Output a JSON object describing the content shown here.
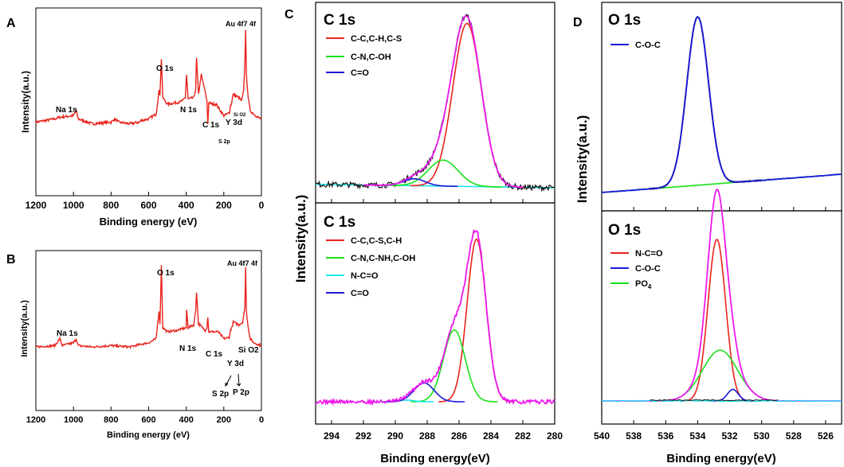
{
  "colors": {
    "red": "#e8231c",
    "green": "#19e01a",
    "blue": "#1a1ad8",
    "cyan": "#19e6ef",
    "magenta": "#ee18ee",
    "black": "#111111"
  },
  "panels": {
    "A": {
      "label": "A",
      "ylabel": "Intensity(a.u.)",
      "xlabel": "Binding energy (eV)",
      "xticks": [
        "1200",
        "1000",
        "800",
        "600",
        "400",
        "200",
        "0"
      ],
      "annotations": [
        "Na 1s",
        "O 1s",
        "N 1s",
        "C 1s",
        "Y 3d",
        "Si O2",
        "S 2p",
        "Au 4f7 4f"
      ]
    },
    "B": {
      "label": "B",
      "ylabel": "Intensity(a.u.)",
      "xlabel": "Binding energy (eV)",
      "xticks": [
        "1200",
        "1000",
        "800",
        "600",
        "400",
        "200",
        "0"
      ],
      "annotations": [
        "Na 1s",
        "O 1s",
        "N 1s",
        "C 1s",
        "Y 3d",
        "Si O2",
        "S 2p",
        "P 2p",
        "Au 4f7 4f"
      ]
    },
    "C": {
      "label": "C",
      "ylabel": "Intensity(a.u.)",
      "xlabel": "Binding energy(eV)",
      "xticks": [
        "294",
        "292",
        "290",
        "288",
        "286",
        "284",
        "282",
        "280"
      ],
      "top": {
        "title": "C 1s",
        "legend": [
          "C-C,C-H,C-S",
          "C-N,C-OH",
          "C=O"
        ]
      },
      "bottom": {
        "title": "C 1s",
        "legend": [
          "C-C,C-S,C-H",
          "C-N,C-NH,C-OH",
          "N-C=O",
          "C=O"
        ]
      }
    },
    "D": {
      "label": "D",
      "ylabel": "Intensity(a.u.)",
      "xlabel": "Binding energy(eV)",
      "xticks": [
        "540",
        "538",
        "536",
        "534",
        "532",
        "530",
        "528",
        "526"
      ],
      "top": {
        "title": "O 1s",
        "legend": [
          "C-O-C"
        ]
      },
      "bottom": {
        "title": "O 1s",
        "legend": [
          "N-C=O",
          "C-O-C",
          "PO4"
        ],
        "legend_subscript": "4"
      }
    }
  },
  "chart_data": [
    {
      "type": "line",
      "title": "A",
      "xlabel": "Binding energy (eV)",
      "ylabel": "Intensity(a.u.)",
      "xlim": [
        1200,
        0
      ],
      "x_reversed": true,
      "series": [
        {
          "name": "Survey spectrum",
          "x": [
            1200,
            1100,
            1072,
            1000,
            985,
            975,
            900,
            800,
            780,
            760,
            700,
            650,
            640,
            600,
            560,
            545,
            540,
            532,
            525,
            500,
            450,
            420,
            405,
            398,
            390,
            360,
            350,
            345,
            335,
            320,
            300,
            290,
            285,
            280,
            260,
            240,
            230,
            200,
            180,
            170,
            165,
            160,
            157,
            150,
            120,
            105,
            100,
            95,
            88,
            84,
            80,
            70,
            60,
            40,
            20,
            0
          ],
          "y": [
            45,
            47,
            48,
            49,
            52,
            47,
            44,
            45,
            47,
            45,
            44,
            45,
            46,
            47,
            50,
            64,
            62,
            84,
            60,
            56,
            57,
            58,
            60,
            74,
            59,
            60,
            65,
            84,
            62,
            74,
            64,
            58,
            44,
            57,
            56,
            56,
            54,
            49,
            50,
            51,
            55,
            56,
            58,
            62,
            60,
            58,
            61,
            64,
            80,
            102,
            74,
            60,
            52,
            50,
            48,
            47
          ]
        }
      ]
    },
    {
      "type": "line",
      "title": "B",
      "xlabel": "Binding energy (eV)",
      "ylabel": "Intensity(a.u.)",
      "xlim": [
        1200,
        0
      ],
      "x_reversed": true,
      "series": [
        {
          "name": "Survey spectrum",
          "x": [
            1200,
            1100,
            1072,
            1060,
            1000,
            985,
            975,
            900,
            800,
            700,
            640,
            600,
            560,
            545,
            540,
            532,
            525,
            500,
            450,
            400,
            398,
            390,
            360,
            350,
            345,
            335,
            300,
            290,
            285,
            280,
            230,
            200,
            170,
            165,
            157,
            150,
            120,
            100,
            88,
            84,
            80,
            70,
            60,
            40,
            20,
            0
          ],
          "y": [
            46,
            47,
            52,
            47,
            49,
            52,
            47,
            46,
            47,
            46,
            48,
            49,
            52,
            72,
            62,
            105,
            60,
            57,
            58,
            60,
            73,
            60,
            62,
            72,
            86,
            63,
            58,
            60,
            68,
            57,
            57,
            52,
            53,
            58,
            60,
            64,
            62,
            64,
            74,
            104,
            72,
            60,
            52,
            49,
            48,
            47
          ]
        }
      ]
    },
    {
      "type": "line",
      "title": "C 1s (top)",
      "xlabel": "Binding energy(eV)",
      "ylabel": "Intensity(a.u.)",
      "xlim": [
        295,
        280
      ],
      "x_reversed": true,
      "series": [
        {
          "name": "C-C,C-H,C-S",
          "peaks": [
            {
              "center": 285.5,
              "height": 94,
              "fwhm": 2.1
            }
          ]
        },
        {
          "name": "C-N,C-OH",
          "peaks": [
            {
              "center": 287.0,
              "height": 15,
              "fwhm": 2.2
            }
          ]
        },
        {
          "name": "C=O",
          "peaks": [
            {
              "center": 288.8,
              "height": 4,
              "fwhm": 1.6
            }
          ]
        },
        {
          "name": "Background",
          "x": [
            295,
            280
          ],
          "y": [
            2,
            0
          ]
        },
        {
          "name": "Envelope",
          "description": "sum of fitted peaks"
        },
        {
          "name": "Raw data",
          "description": "noisy experimental curve"
        }
      ]
    },
    {
      "type": "line",
      "title": "C 1s (bottom)",
      "xlabel": "Binding energy(eV)",
      "ylabel": "Intensity(a.u.)",
      "xlim": [
        295,
        280
      ],
      "x_reversed": true,
      "series": [
        {
          "name": "C-C,C-S,C-H",
          "peaks": [
            {
              "center": 284.9,
              "height": 95,
              "fwhm": 1.4
            }
          ]
        },
        {
          "name": "C-N,C-NH,C-OH",
          "peaks": [
            {
              "center": 286.3,
              "height": 42,
              "fwhm": 1.6
            }
          ]
        },
        {
          "name": "N-C=O",
          "peaks": [
            {
              "center": 289.3,
              "height": 1,
              "fwhm": 1.0
            }
          ]
        },
        {
          "name": "C=O",
          "peaks": [
            {
              "center": 288.2,
              "height": 11,
              "fwhm": 1.5
            }
          ]
        },
        {
          "name": "Envelope",
          "description": "sum of fitted peaks"
        }
      ]
    },
    {
      "type": "line",
      "title": "O 1s (top)",
      "xlabel": "Binding energy(eV)",
      "ylabel": "Intensity(a.u.)",
      "xlim": [
        540,
        525
      ],
      "x_reversed": true,
      "series": [
        {
          "name": "C-O-C",
          "peaks": [
            {
              "center": 534.0,
              "height": 92,
              "fwhm": 1.6
            }
          ]
        },
        {
          "name": "Background",
          "x": [
            540,
            525
          ],
          "y": [
            0,
            10
          ]
        }
      ]
    },
    {
      "type": "line",
      "title": "O 1s (bottom)",
      "xlabel": "Binding energy(eV)",
      "ylabel": "Intensity(a.u.)",
      "xlim": [
        540,
        525
      ],
      "x_reversed": true,
      "series": [
        {
          "name": "N-C=O",
          "peaks": [
            {
              "center": 532.8,
              "height": 70,
              "fwhm": 1.3
            }
          ]
        },
        {
          "name": "C-O-C",
          "peaks": [
            {
              "center": 531.8,
              "height": 5,
              "fwhm": 0.8
            }
          ]
        },
        {
          "name": "PO4",
          "peaks": [
            {
              "center": 532.6,
              "height": 22,
              "fwhm": 2.6
            }
          ]
        },
        {
          "name": "Envelope",
          "description": "sum of fitted peaks"
        }
      ]
    }
  ]
}
